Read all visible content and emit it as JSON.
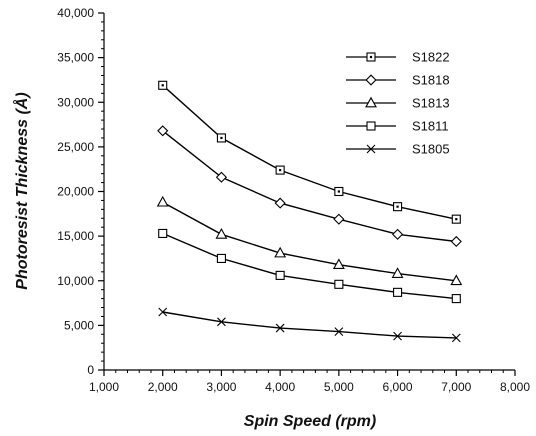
{
  "chart_data": {
    "type": "line",
    "xlabel": "Spin Speed (rpm)",
    "ylabel": "Photoresist Thickness (Å)",
    "xlim": [
      1000,
      8000
    ],
    "ylim": [
      0,
      40000
    ],
    "x_ticks": [
      1000,
      2000,
      3000,
      4000,
      5000,
      6000,
      7000,
      8000
    ],
    "x_tick_labels": [
      "1,000",
      "2,000",
      "3,000",
      "4,000",
      "5,000",
      "6,000",
      "7,000",
      "8,000"
    ],
    "y_ticks": [
      0,
      5000,
      10000,
      15000,
      20000,
      25000,
      30000,
      35000,
      40000
    ],
    "y_tick_labels": [
      "0",
      "5,000",
      "10,000",
      "15,000",
      "20,000",
      "25,000",
      "30,000",
      "35,000",
      "40,000"
    ],
    "grid": false,
    "legend_position": "top-right",
    "x": [
      2000,
      3000,
      4000,
      5000,
      6000,
      7000
    ],
    "series": [
      {
        "name": "S1822",
        "marker": "square-dot",
        "values": [
          31900,
          26000,
          22400,
          20000,
          18300,
          16900
        ]
      },
      {
        "name": "S1818",
        "marker": "diamond",
        "values": [
          26800,
          21600,
          18700,
          16900,
          15200,
          14400
        ]
      },
      {
        "name": "S1813",
        "marker": "triangle",
        "values": [
          18800,
          15200,
          13100,
          11800,
          10800,
          10000
        ]
      },
      {
        "name": "S1811",
        "marker": "square",
        "values": [
          15300,
          12500,
          10600,
          9600,
          8700,
          8000
        ]
      },
      {
        "name": "S1805",
        "marker": "x",
        "values": [
          6500,
          5400,
          4700,
          4300,
          3800,
          3600
        ]
      }
    ]
  }
}
